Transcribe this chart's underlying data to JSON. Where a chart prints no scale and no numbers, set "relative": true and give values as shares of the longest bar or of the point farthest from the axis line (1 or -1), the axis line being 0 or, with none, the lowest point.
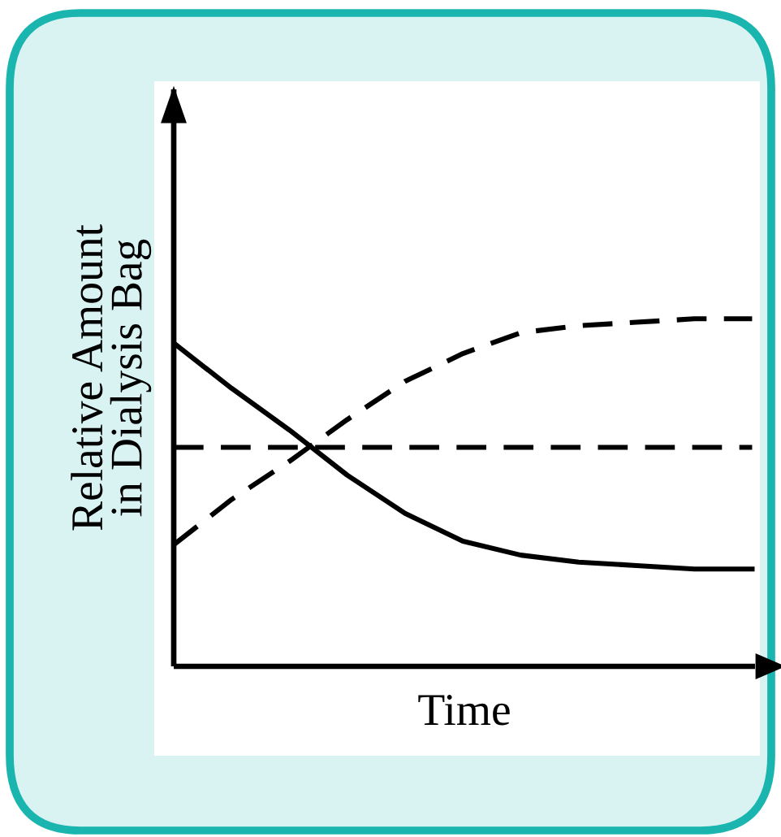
{
  "chart_data": {
    "type": "line",
    "relative": true,
    "xlabel": "Time",
    "ylabel": "Relative Amount\nin Dialysis Bag",
    "categories": [
      null,
      null,
      null,
      null,
      null,
      null,
      null,
      null,
      null,
      null,
      null
    ],
    "series": [
      {
        "color": "#000000",
        "line_style": "dashed",
        "values": [
          0.35,
          0.48,
          0.59,
          0.71,
          0.82,
          0.9,
          0.96,
          0.98,
          0.99,
          1.0,
          1.0
        ]
      },
      {
        "color": "#000000",
        "line_style": "solid",
        "values": [
          0.93,
          0.8,
          0.68,
          0.55,
          0.44,
          0.36,
          0.32,
          0.3,
          0.29,
          0.28,
          0.28
        ]
      },
      {
        "color": "#000000",
        "line_style": "dashed",
        "values": [
          0.63,
          0.63,
          0.63,
          0.63,
          0.63,
          0.63,
          0.63,
          0.63,
          0.63,
          0.63,
          0.63
        ]
      }
    ]
  }
}
